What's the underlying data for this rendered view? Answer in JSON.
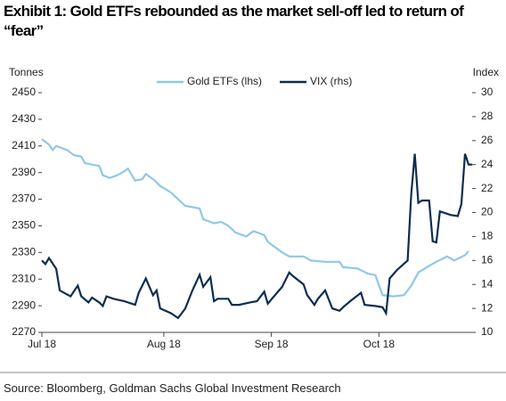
{
  "chart_data": {
    "type": "line",
    "title": "Exhibit 1: Gold ETFs rebounded as the market sell-off led to return of “fear”",
    "y_label": "Tonnes",
    "y2_label": "Index",
    "source": "Source: Bloomberg, Goldman Sachs Global Investment Research",
    "xlim": [
      0,
      120
    ],
    "xticks": [
      {
        "value": 0,
        "label": "Jul 18"
      },
      {
        "value": 34,
        "label": "Aug 18"
      },
      {
        "value": 64,
        "label": "Sep 18"
      },
      {
        "value": 94,
        "label": "Oct 18"
      }
    ],
    "ylim": [
      2270,
      2450
    ],
    "yticks": [
      2270,
      2290,
      2310,
      2330,
      2350,
      2370,
      2390,
      2410,
      2430,
      2450
    ],
    "y2lim": [
      10,
      30
    ],
    "y2ticks": [
      10,
      12,
      14,
      16,
      18,
      20,
      22,
      24,
      26,
      28,
      30
    ],
    "series": [
      {
        "name": "Gold ETFs (lhs)",
        "color": "#8fc8e6",
        "x": [
          0,
          2,
          3,
          4,
          7,
          9,
          11,
          12,
          16,
          17,
          19,
          21,
          23,
          24,
          26,
          28,
          29,
          31,
          33,
          36,
          38,
          40,
          44,
          45,
          48,
          50,
          52,
          54,
          57,
          59,
          62,
          63,
          67,
          69,
          73,
          75,
          79,
          83,
          84,
          88,
          91,
          93,
          95,
          98,
          101,
          103,
          105,
          108,
          110,
          113,
          115,
          118,
          119
        ],
        "values": [
          2415,
          2411,
          2407,
          2410,
          2407,
          2403,
          2402,
          2397,
          2395,
          2388,
          2386,
          2388,
          2391,
          2393,
          2384,
          2385,
          2389,
          2385,
          2380,
          2375,
          2370,
          2365,
          2363,
          2355,
          2352,
          2353,
          2350,
          2345,
          2342,
          2346,
          2343,
          2338,
          2330,
          2327,
          2327,
          2324,
          2323,
          2323,
          2319,
          2318,
          2314,
          2313,
          2298,
          2297,
          2298,
          2305,
          2315,
          2320,
          2323,
          2327,
          2324,
          2328,
          2331
        ]
      },
      {
        "name": "VIX (rhs)",
        "color": "#0c2d50",
        "axis": "y2",
        "x": [
          0,
          1,
          2,
          4,
          5,
          8,
          10,
          11,
          13,
          14,
          16,
          17,
          18,
          20,
          23,
          26,
          27,
          29,
          31,
          32,
          33,
          36,
          38,
          39,
          40,
          42,
          44,
          45,
          47,
          48,
          49,
          52,
          53,
          55,
          58,
          60,
          62,
          63,
          67,
          69,
          70,
          73,
          74,
          76,
          77,
          79,
          81,
          83,
          84,
          86,
          89,
          90,
          93,
          95,
          96,
          97,
          99,
          102,
          103,
          104,
          105,
          106,
          108,
          109,
          110,
          111,
          114,
          116,
          117,
          118,
          119,
          120
        ],
        "values": [
          16,
          15.7,
          16.2,
          15.3,
          13.5,
          13,
          13.9,
          13,
          12.5,
          12.9,
          12.5,
          12.2,
          13,
          12.8,
          12.6,
          12.3,
          13.3,
          14.5,
          13.1,
          13.5,
          12,
          11.6,
          11.2,
          11.6,
          12,
          13.5,
          14.8,
          13.8,
          14.6,
          12.6,
          12.8,
          12.8,
          12.3,
          12.3,
          12.5,
          12.6,
          13.4,
          12.4,
          13.8,
          15,
          14.7,
          14,
          13.1,
          12.3,
          12.8,
          13.5,
          12,
          11.8,
          12.1,
          12.6,
          13.3,
          12.3,
          12.2,
          12.1,
          11.6,
          14.5,
          15.2,
          16,
          21.5,
          24.9,
          20.8,
          21,
          21,
          17.6,
          17.5,
          20.1,
          19.8,
          19.7,
          20.7,
          24.9,
          24,
          24
        ]
      }
    ]
  }
}
